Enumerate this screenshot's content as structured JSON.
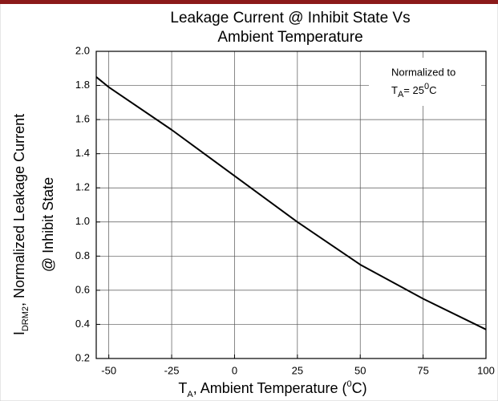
{
  "chart_data": {
    "type": "line",
    "title": [
      "Leakage Current @ Inhibit State Vs",
      "Ambient Temperature"
    ],
    "x_label": {
      "main": "T",
      "sub": "A",
      "rest": ", Ambient Temperature (",
      "sup": "0",
      "end": "C)"
    },
    "y_label": {
      "main": "I",
      "sub": "DRM2",
      "rest": ", Normalized Leakage Current",
      "line2": "@ Inhibit State"
    },
    "annotation": {
      "line1": "Normalized to",
      "main": "T",
      "sub": "A",
      "rest": "= 25",
      "sup": "0",
      "end": "C"
    },
    "x": [
      -55,
      -50,
      -25,
      0,
      25,
      50,
      75,
      100
    ],
    "series": [
      {
        "name": "IDRM2",
        "color": "#000000",
        "values": [
          1.85,
          1.79,
          1.54,
          1.27,
          1.0,
          0.75,
          0.55,
          0.37
        ]
      }
    ],
    "xlim": [
      -55,
      100
    ],
    "xticks": [
      -50,
      -25,
      0,
      25,
      50,
      75,
      100
    ],
    "ylim": [
      0.2,
      2.0
    ],
    "yticks": [
      0.2,
      0.4,
      0.6,
      0.8,
      {
        "value": 1,
        "label": "1.0"
      },
      1.2,
      1.4,
      1.6,
      1.8,
      {
        "value": 2,
        "label": "2.0"
      }
    ],
    "grid": true
  }
}
